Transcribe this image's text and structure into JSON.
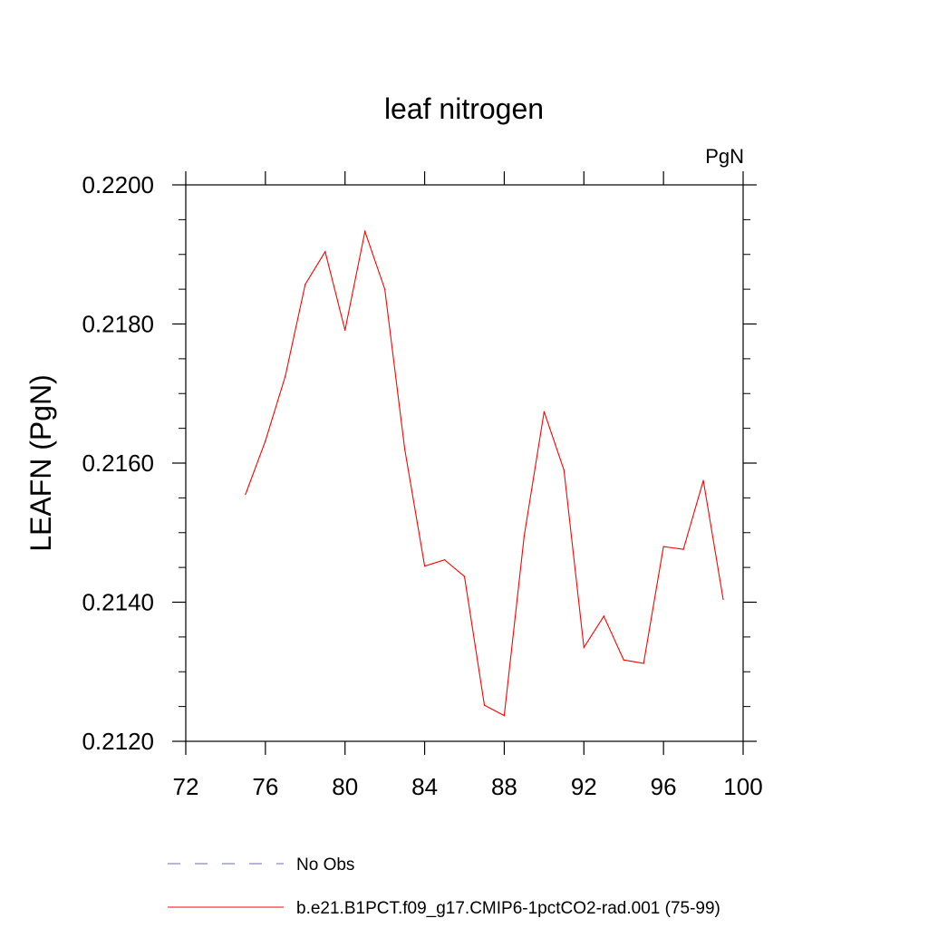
{
  "chart_data": {
    "type": "line",
    "title": "leaf nitrogen",
    "units_label": "PgN",
    "xlabel": "",
    "ylabel": "LEAFN  (PgN)",
    "xlim": [
      72,
      100
    ],
    "ylim": [
      0.212,
      0.22
    ],
    "x_ticks": [
      72,
      76,
      80,
      84,
      88,
      92,
      96,
      100
    ],
    "y_ticks": [
      0.212,
      0.214,
      0.216,
      0.218,
      0.22
    ],
    "x_tick_labels": [
      "72",
      "76",
      "80",
      "84",
      "88",
      "92",
      "96",
      "100"
    ],
    "y_tick_labels": [
      "0.2120",
      "0.2140",
      "0.2160",
      "0.2180",
      "0.2200"
    ],
    "grid": false,
    "legend_position": "bottom",
    "series": [
      {
        "name": "b.e21.B1PCT.f09_g17.CMIP6-1pctCO2-rad.001 (75-99)",
        "color": "#ff0000",
        "dash": "solid",
        "x": [
          75,
          76,
          77,
          78,
          79,
          80,
          81,
          82,
          83,
          84,
          85,
          86,
          87,
          88,
          89,
          90,
          91,
          92,
          93,
          94,
          95,
          96,
          97,
          98,
          99
        ],
        "y": [
          0.21555,
          0.21632,
          0.21725,
          0.21857,
          0.21904,
          0.21791,
          0.21933,
          0.2185,
          0.2162,
          0.21452,
          0.21461,
          0.21437,
          0.21252,
          0.21237,
          0.21495,
          0.21674,
          0.2159,
          0.21335,
          0.2138,
          0.21317,
          0.21312,
          0.2148,
          0.21476,
          0.21575,
          0.21404
        ]
      }
    ],
    "legend": [
      {
        "label": "No Obs",
        "color": "#6a6ab8",
        "dash": "dashed"
      },
      {
        "label": "b.e21.B1PCT.f09_g17.CMIP6-1pctCO2-rad.001 (75-99)",
        "color": "#ff0000",
        "dash": "solid"
      }
    ]
  }
}
